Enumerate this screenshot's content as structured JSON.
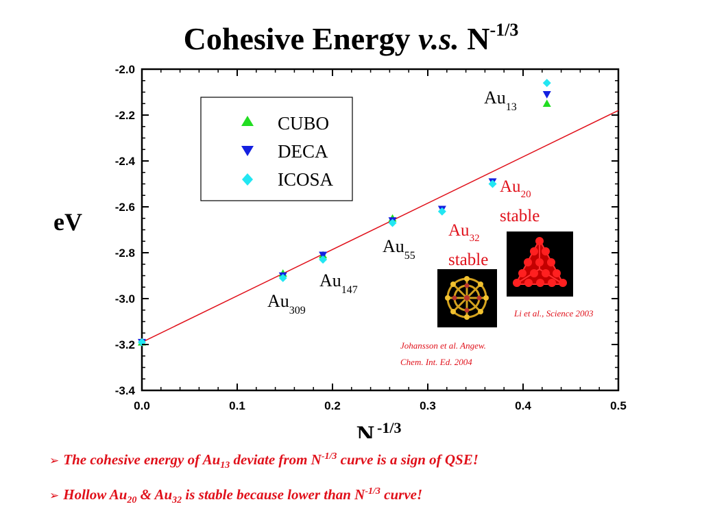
{
  "title": {
    "main": "Cohesive Energy",
    "vs": "v.s.",
    "n": "N",
    "exp": "-1/3"
  },
  "legend": [
    {
      "label": "CUBO",
      "color": "#22dd22",
      "marker": "triangle-up"
    },
    {
      "label": "DECA",
      "color": "#1420e0",
      "marker": "triangle-down"
    },
    {
      "label": "ICOSA",
      "color": "#22e6f2",
      "marker": "diamond"
    }
  ],
  "axis_title": {
    "x_base": "N",
    "x_exp": "-1/3"
  },
  "labels": {
    "au13": {
      "base": "Au",
      "sub": "13"
    },
    "au55": {
      "base": "Au",
      "sub": "55"
    },
    "au147": {
      "base": "Au",
      "sub": "147"
    },
    "au309": {
      "base": "Au",
      "sub": "309"
    },
    "au20": {
      "base": "Au",
      "sub": "20",
      "note": "stable"
    },
    "au32": {
      "base": "Au",
      "sub": "32",
      "note": "stable"
    }
  },
  "citations": {
    "li": "Li et al., Science 2003",
    "johansson_1": "Johansson et al. Angew.",
    "johansson_2": "Chem. Int. Ed. 2004"
  },
  "bullets": [
    {
      "a": "The cohesive energy of Au",
      "sub1": "13",
      "b": " deviate from N",
      "sup1": "-1/3",
      "c": " curve is a sign of  QSE!"
    },
    {
      "a": "Hollow Au",
      "sub1": "20",
      "b": " & Au",
      "sub2": "32",
      "c": " is stable because lower than N",
      "sup1": "-1/3",
      "d": " curve!"
    }
  ],
  "chart_data": {
    "type": "scatter",
    "title": "Cohesive Energy v.s. N-1/3",
    "xlabel": "N -1/3",
    "ylabel": "eV",
    "xlim": [
      0.0,
      0.5
    ],
    "ylim": [
      -3.4,
      -2.0
    ],
    "xticks": [
      "0.0",
      "0.1",
      "0.2",
      "0.3",
      "0.4",
      "0.5"
    ],
    "yticks": [
      "-2.0",
      "-2.2",
      "-2.4",
      "-2.6",
      "-2.8",
      "-3.0",
      "-3.2",
      "-3.4"
    ],
    "legend_position": "upper-left",
    "fit_line": {
      "x": [
        0.0,
        0.5
      ],
      "y": [
        -3.19,
        -2.18
      ],
      "color": "#e0101a"
    },
    "series": [
      {
        "name": "CUBO",
        "marker": "triangle-up",
        "color": "#22dd22",
        "points": [
          [
            0.0,
            -3.19
          ],
          [
            0.148,
            -2.89
          ],
          [
            0.19,
            -2.81
          ],
          [
            0.263,
            -2.65
          ],
          [
            0.425,
            -2.15
          ]
        ]
      },
      {
        "name": "DECA",
        "marker": "triangle-down",
        "color": "#1420e0",
        "points": [
          [
            0.0,
            -3.19
          ],
          [
            0.148,
            -2.9
          ],
          [
            0.19,
            -2.81
          ],
          [
            0.263,
            -2.66
          ],
          [
            0.315,
            -2.61
          ],
          [
            0.368,
            -2.49
          ],
          [
            0.425,
            -2.11
          ]
        ]
      },
      {
        "name": "ICOSA",
        "marker": "diamond",
        "color": "#22e6f2",
        "points": [
          [
            0.0,
            -3.19
          ],
          [
            0.148,
            -2.91
          ],
          [
            0.19,
            -2.83
          ],
          [
            0.263,
            -2.67
          ],
          [
            0.315,
            -2.62
          ],
          [
            0.368,
            -2.5
          ],
          [
            0.425,
            -2.06
          ]
        ]
      }
    ]
  }
}
